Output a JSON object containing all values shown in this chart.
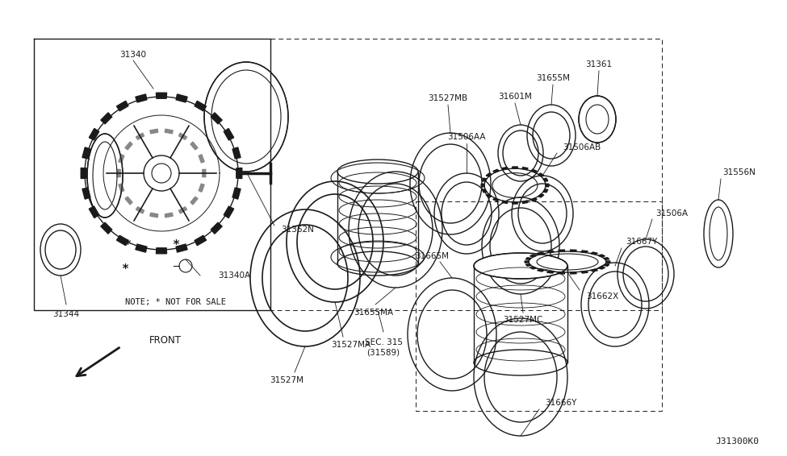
{
  "bg_color": "#ffffff",
  "line_color": "#1a1a1a",
  "fig_width": 9.75,
  "fig_height": 5.66,
  "diagram_id": "J31300K0",
  "note_symbol": "*",
  "note_text": "NOTE; * NOT FOR SALE",
  "front_label": "FRONT"
}
